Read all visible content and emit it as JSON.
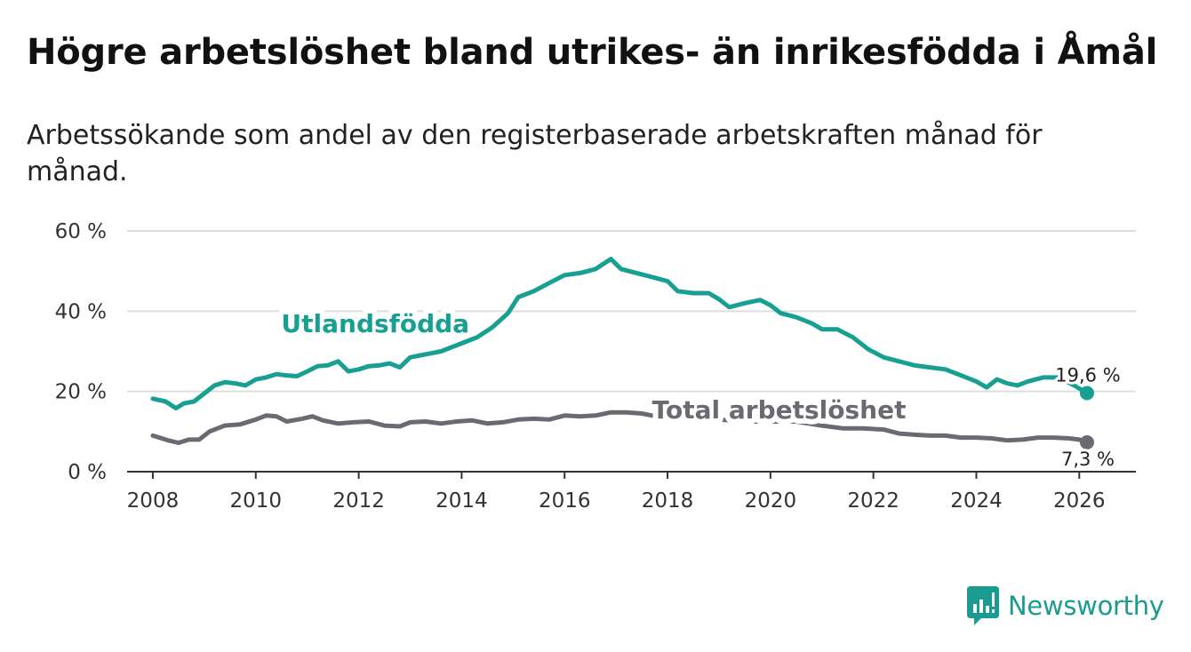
{
  "title": "Högre arbetslöshet bland utrikes- än inrikesfödda i Åmål",
  "subtitle": "Arbetssökande som andel av den registerbaserade arbetskraften månad för månad.",
  "brand": {
    "name": "Newsworthy",
    "icon": "bar-chart-logo-icon"
  },
  "colors": {
    "teal": "#17a092",
    "gray": "#6b6a72",
    "grid": "#dddddd",
    "axis": "#333333"
  },
  "chart_data": {
    "type": "line",
    "title": "Högre arbetslöshet bland utrikes- än inrikesfödda i Åmål",
    "ylim": [
      0,
      60
    ],
    "xlim": [
      2007.5,
      2027.1
    ],
    "yticks": [
      0,
      20,
      40,
      60
    ],
    "ytick_labels": [
      "0 %",
      "20 %",
      "40 %",
      "60 %"
    ],
    "xticks": [
      2008,
      2010,
      2012,
      2014,
      2016,
      2018,
      2020,
      2022,
      2024,
      2026
    ],
    "xtick_labels": [
      "2008",
      "2010",
      "2012",
      "2014",
      "2016",
      "2018",
      "2020",
      "2022",
      "2024",
      "2026"
    ],
    "series": [
      {
        "name": "Utlandsfödda",
        "color": "#17a092",
        "end_label": "19,6 %",
        "points": [
          [
            2008.0,
            18.2
          ],
          [
            2008.25,
            17.5
          ],
          [
            2008.45,
            15.8
          ],
          [
            2008.6,
            17.0
          ],
          [
            2008.8,
            17.5
          ],
          [
            2009.0,
            19.5
          ],
          [
            2009.2,
            21.5
          ],
          [
            2009.4,
            22.3
          ],
          [
            2009.6,
            22.0
          ],
          [
            2009.8,
            21.5
          ],
          [
            2010.0,
            23.0
          ],
          [
            2010.2,
            23.5
          ],
          [
            2010.4,
            24.3
          ],
          [
            2010.6,
            24.0
          ],
          [
            2010.8,
            23.8
          ],
          [
            2011.0,
            25.0
          ],
          [
            2011.2,
            26.3
          ],
          [
            2011.4,
            26.5
          ],
          [
            2011.6,
            27.5
          ],
          [
            2011.8,
            25.0
          ],
          [
            2012.0,
            25.5
          ],
          [
            2012.2,
            26.3
          ],
          [
            2012.4,
            26.5
          ],
          [
            2012.6,
            27.0
          ],
          [
            2012.8,
            26.0
          ],
          [
            2013.0,
            28.5
          ],
          [
            2013.2,
            29.0
          ],
          [
            2013.4,
            29.5
          ],
          [
            2013.6,
            30.0
          ],
          [
            2013.8,
            31.0
          ],
          [
            2014.0,
            32.0
          ],
          [
            2014.3,
            33.5
          ],
          [
            2014.6,
            36.0
          ],
          [
            2014.9,
            39.5
          ],
          [
            2015.1,
            43.5
          ],
          [
            2015.4,
            45.0
          ],
          [
            2015.7,
            47.0
          ],
          [
            2016.0,
            49.0
          ],
          [
            2016.3,
            49.5
          ],
          [
            2016.6,
            50.5
          ],
          [
            2016.9,
            53.0
          ],
          [
            2017.1,
            50.5
          ],
          [
            2017.4,
            49.5
          ],
          [
            2017.7,
            48.5
          ],
          [
            2018.0,
            47.5
          ],
          [
            2018.2,
            45.0
          ],
          [
            2018.5,
            44.5
          ],
          [
            2018.8,
            44.5
          ],
          [
            2019.0,
            43.0
          ],
          [
            2019.2,
            41.0
          ],
          [
            2019.5,
            42.0
          ],
          [
            2019.8,
            42.8
          ],
          [
            2020.0,
            41.5
          ],
          [
            2020.2,
            39.5
          ],
          [
            2020.5,
            38.5
          ],
          [
            2020.8,
            37.0
          ],
          [
            2021.0,
            35.5
          ],
          [
            2021.3,
            35.5
          ],
          [
            2021.6,
            33.5
          ],
          [
            2021.9,
            30.5
          ],
          [
            2022.2,
            28.5
          ],
          [
            2022.5,
            27.5
          ],
          [
            2022.8,
            26.5
          ],
          [
            2023.1,
            26.0
          ],
          [
            2023.4,
            25.5
          ],
          [
            2023.7,
            24.0
          ],
          [
            2024.0,
            22.5
          ],
          [
            2024.2,
            21.0
          ],
          [
            2024.4,
            23.0
          ],
          [
            2024.6,
            22.0
          ],
          [
            2024.8,
            21.5
          ],
          [
            2025.0,
            22.5
          ],
          [
            2025.3,
            23.5
          ],
          [
            2025.6,
            23.5
          ],
          [
            2025.9,
            21.5
          ],
          [
            2026.15,
            19.6
          ]
        ]
      },
      {
        "name": "Total arbetslöshet",
        "color": "#6b6a72",
        "end_label": "7,3 %",
        "points": [
          [
            2008.0,
            9.0
          ],
          [
            2008.3,
            7.8
          ],
          [
            2008.5,
            7.2
          ],
          [
            2008.7,
            8.0
          ],
          [
            2008.9,
            8.0
          ],
          [
            2009.1,
            10.0
          ],
          [
            2009.4,
            11.5
          ],
          [
            2009.7,
            11.8
          ],
          [
            2010.0,
            13.0
          ],
          [
            2010.2,
            14.0
          ],
          [
            2010.4,
            13.8
          ],
          [
            2010.6,
            12.5
          ],
          [
            2010.9,
            13.2
          ],
          [
            2011.1,
            13.8
          ],
          [
            2011.3,
            12.8
          ],
          [
            2011.6,
            12.0
          ],
          [
            2011.9,
            12.3
          ],
          [
            2012.2,
            12.5
          ],
          [
            2012.5,
            11.5
          ],
          [
            2012.8,
            11.3
          ],
          [
            2013.0,
            12.3
          ],
          [
            2013.3,
            12.5
          ],
          [
            2013.6,
            12.0
          ],
          [
            2013.9,
            12.5
          ],
          [
            2014.2,
            12.8
          ],
          [
            2014.5,
            12.0
          ],
          [
            2014.8,
            12.3
          ],
          [
            2015.1,
            13.0
          ],
          [
            2015.4,
            13.2
          ],
          [
            2015.7,
            13.0
          ],
          [
            2016.0,
            14.0
          ],
          [
            2016.3,
            13.8
          ],
          [
            2016.6,
            14.0
          ],
          [
            2016.9,
            14.8
          ],
          [
            2017.2,
            14.8
          ],
          [
            2017.5,
            14.5
          ],
          [
            2017.7,
            14.0
          ],
          [
            2018.0,
            13.5
          ],
          [
            2018.5,
            13.5
          ],
          [
            2019.0,
            13.0
          ],
          [
            2019.5,
            12.5
          ],
          [
            2020.0,
            12.5
          ],
          [
            2020.5,
            12.5
          ],
          [
            2021.0,
            11.5
          ],
          [
            2021.4,
            10.8
          ],
          [
            2021.8,
            10.8
          ],
          [
            2022.2,
            10.5
          ],
          [
            2022.5,
            9.5
          ],
          [
            2022.8,
            9.2
          ],
          [
            2023.1,
            9.0
          ],
          [
            2023.4,
            9.0
          ],
          [
            2023.7,
            8.5
          ],
          [
            2024.0,
            8.5
          ],
          [
            2024.3,
            8.3
          ],
          [
            2024.6,
            7.8
          ],
          [
            2024.9,
            8.0
          ],
          [
            2025.2,
            8.5
          ],
          [
            2025.5,
            8.5
          ],
          [
            2025.8,
            8.3
          ],
          [
            2026.0,
            8.0
          ],
          [
            2026.15,
            7.3
          ]
        ]
      }
    ]
  }
}
